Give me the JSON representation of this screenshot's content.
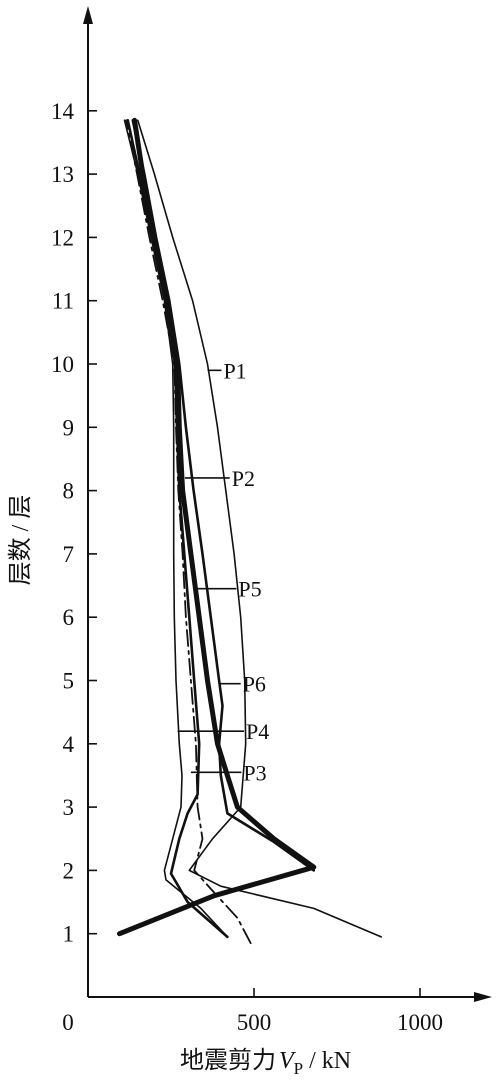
{
  "chart_data": {
    "type": "line",
    "xlabel": {
      "prefix": "地震剪力",
      "symbol": "V",
      "subscript": "P",
      "unit": " / kN"
    },
    "ylabel": "层数 / 层",
    "origin_label": "0",
    "xlim": [
      0,
      1150
    ],
    "ylim": [
      0,
      14.5
    ],
    "x_ticks": [
      500,
      1000
    ],
    "x_tick_labels": [
      "500",
      "1000"
    ],
    "y_ticks": [
      1,
      2,
      3,
      4,
      5,
      6,
      7,
      8,
      9,
      10,
      11,
      12,
      13,
      14
    ],
    "y_tick_labels": [
      "1",
      "2",
      "3",
      "4",
      "5",
      "6",
      "7",
      "8",
      "9",
      "10",
      "11",
      "12",
      "13",
      "14"
    ],
    "grid": false,
    "series": [
      {
        "name": "P1",
        "style": "thin",
        "points": [
          [
            883,
            0.95
          ],
          [
            680,
            1.4
          ],
          [
            400,
            1.75
          ],
          [
            305,
            2.0
          ],
          [
            375,
            2.5
          ],
          [
            460,
            3.0
          ],
          [
            475,
            4.0
          ],
          [
            472,
            5.0
          ],
          [
            460,
            6.0
          ],
          [
            440,
            7.0
          ],
          [
            415,
            8.0
          ],
          [
            390,
            9.0
          ],
          [
            360,
            10.0
          ],
          [
            315,
            11.0
          ],
          [
            255,
            12.0
          ],
          [
            200,
            13.0
          ],
          [
            150,
            13.85
          ]
        ],
        "label_x": 360,
        "label_y": 9.9
      },
      {
        "name": "P2",
        "style": "thick",
        "points": [
          [
            95,
            1.0
          ],
          [
            380,
            1.6
          ],
          [
            680,
            2.05
          ],
          [
            560,
            2.5
          ],
          [
            450,
            3.0
          ],
          [
            420,
            3.5
          ],
          [
            390,
            4.0
          ],
          [
            360,
            5.0
          ],
          [
            335,
            6.0
          ],
          [
            310,
            7.0
          ],
          [
            285,
            8.0
          ],
          [
            275,
            9.0
          ],
          [
            270,
            10.0
          ],
          [
            240,
            11.0
          ],
          [
            200,
            12.0
          ],
          [
            165,
            13.0
          ],
          [
            140,
            13.85
          ]
        ],
        "label_x": 292,
        "label_y": 8.2
      },
      {
        "name": "P3",
        "style": "dashdot",
        "points": [
          [
            490,
            0.85
          ],
          [
            450,
            1.25
          ],
          [
            380,
            1.65
          ],
          [
            320,
            2.0
          ],
          [
            345,
            2.5
          ],
          [
            330,
            3.0
          ],
          [
            325,
            4.0
          ],
          [
            310,
            5.0
          ],
          [
            295,
            6.0
          ],
          [
            285,
            7.0
          ],
          [
            272,
            8.0
          ],
          [
            265,
            9.0
          ],
          [
            260,
            10.0
          ],
          [
            225,
            11.0
          ],
          [
            185,
            12.0
          ],
          [
            148,
            13.0
          ],
          [
            115,
            13.85
          ]
        ],
        "label_x": 310,
        "label_y": 3.55
      },
      {
        "name": "P4",
        "style": "thin",
        "points": [
          [
            420,
            0.95
          ],
          [
            340,
            1.4
          ],
          [
            235,
            1.85
          ],
          [
            230,
            2.0
          ],
          [
            255,
            2.5
          ],
          [
            280,
            3.0
          ],
          [
            283,
            3.5
          ],
          [
            275,
            4.0
          ],
          [
            265,
            5.0
          ],
          [
            260,
            6.0
          ],
          [
            258,
            7.0
          ],
          [
            258,
            8.0
          ],
          [
            258,
            9.0
          ],
          [
            255,
            10.0
          ],
          [
            230,
            11.0
          ],
          [
            190,
            12.0
          ],
          [
            150,
            13.0
          ],
          [
            110,
            13.85
          ]
        ],
        "label_x": 270,
        "label_y": 4.2
      },
      {
        "name": "P5",
        "style": "medium",
        "points": [
          [
            420,
            0.95
          ],
          [
            300,
            1.5
          ],
          [
            250,
            1.95
          ],
          [
            275,
            2.5
          ],
          [
            300,
            2.9
          ],
          [
            330,
            3.2
          ],
          [
            335,
            4.0
          ],
          [
            320,
            5.0
          ],
          [
            305,
            6.0
          ],
          [
            290,
            7.0
          ],
          [
            275,
            8.0
          ],
          [
            268,
            9.0
          ],
          [
            262,
            10.0
          ],
          [
            235,
            11.0
          ],
          [
            192,
            12.0
          ],
          [
            155,
            13.0
          ],
          [
            120,
            13.85
          ]
        ],
        "label_x": 320,
        "label_y": 6.45
      },
      {
        "name": "P6",
        "style": "medium",
        "points": [
          [
            680,
            2.0
          ],
          [
            560,
            2.45
          ],
          [
            420,
            2.9
          ],
          [
            400,
            3.5
          ],
          [
            395,
            4.0
          ],
          [
            405,
            4.6
          ],
          [
            395,
            5.0
          ],
          [
            370,
            6.0
          ],
          [
            345,
            7.0
          ],
          [
            318,
            8.0
          ],
          [
            295,
            9.0
          ],
          [
            275,
            10.0
          ],
          [
            245,
            11.0
          ],
          [
            205,
            12.0
          ],
          [
            170,
            13.0
          ],
          [
            135,
            13.85
          ]
        ],
        "label_x": 395,
        "label_y": 4.95
      }
    ],
    "series_labels": [
      {
        "name": "P1",
        "text_x": 420,
        "text_y": 9.9
      },
      {
        "name": "P2",
        "text_x": 445,
        "text_y": 8.2
      },
      {
        "name": "P5",
        "text_x": 465,
        "text_y": 6.45
      },
      {
        "name": "P6",
        "text_x": 478,
        "text_y": 4.95
      },
      {
        "name": "P4",
        "text_x": 488,
        "text_y": 4.2
      },
      {
        "name": "P3",
        "text_x": 480,
        "text_y": 3.55
      }
    ]
  }
}
